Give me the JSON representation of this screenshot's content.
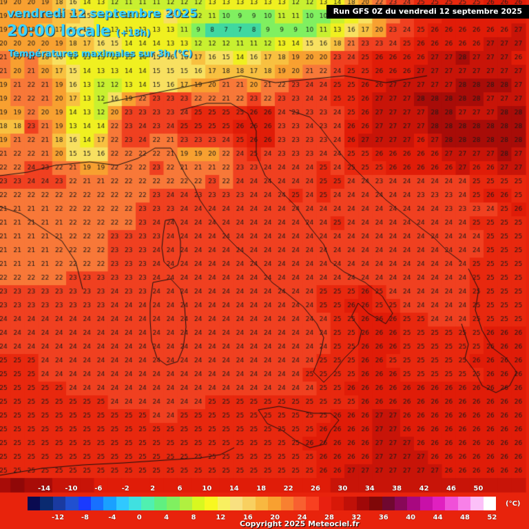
{
  "header": {
    "date": "vendredi 12 septembre 2025",
    "time": "20:00 locale",
    "lead": "(+18h)",
    "parameter": "Températures maximales sur 3h (°C)"
  },
  "run_info": "Run GFS 0Z du vendredi 12 septembre 2025",
  "copyright": "Copyright 2025 Meteociel.fr",
  "legend": {
    "unit": "(°C)",
    "top_labels": [
      "-14",
      "-10",
      "-6",
      "-2",
      "2",
      "6",
      "10",
      "14",
      "18",
      "22",
      "26",
      "30",
      "34",
      "38",
      "42",
      "46",
      "50"
    ],
    "bottom_labels": [
      "-12",
      "-8",
      "-4",
      "0",
      "4",
      "8",
      "12",
      "16",
      "20",
      "24",
      "28",
      "32",
      "36",
      "40",
      "44",
      "48",
      "52"
    ],
    "colors": [
      "#0a0a50",
      "#0a2a70",
      "#1a3aa0",
      "#2050d0",
      "#1a3aff",
      "#1870ff",
      "#1aa0ff",
      "#30c8ff",
      "#40e0e0",
      "#50f0b0",
      "#60f080",
      "#80f060",
      "#b0f040",
      "#d8f820",
      "#f8f820",
      "#f8f060",
      "#f8e080",
      "#f8d060",
      "#f8b840",
      "#f8a030",
      "#f88030",
      "#f86030",
      "#f84020",
      "#e82010",
      "#d81808",
      "#c01008",
      "#a00808",
      "#800808",
      "#700830",
      "#880858",
      "#a80880",
      "#c810a8",
      "#e020c0",
      "#f050d8",
      "#f880e8",
      "#fcc0f8",
      "#ffffff"
    ]
  },
  "grid": {
    "rows": [
      "19 20 20 19 18 16 14 13 12 11 11 11 12 12 12 13 13 13 13 13 13 12 12 13 14 18 20 22 23 24 25 25 25 25 25 26 26 26",
      "19 20 20 19 18 17 15 14 13 13 13 14 15 13 12 11 10 9 9 10 11 11 10 10 11 14 15 20 21 24 25 25 26 26 26 26 26 26",
      "19 19 19 18 17 16 15 14 13 13 13 13 13 11 9 8 7 7 8 9 9 9 10 11 13 16 17 20 23 24 25 26 26 26 26 26 26 27",
      "20 20 20 20 19 18 17 16 15 14 14 14 13 13 12 12 12 11 11 12 13 14 15 16 18 21 23 23 24 25 26 26 26 26 26 27 27 27",
      "21 20 21 18 16 14 13 13 13 13 14 15 16 16 17 16 15 14 16 17 18 19 20 20 23 24 25 26 26 26 26 27 27 28 27 27 27 26",
      "21 20 21 20 17 15 14 13 13 14 14 15 15 15 16 17 18 18 17 18 19 20 21 22 24 25 25 26 26 26 27 27 27 27 27 27 27 27",
      "19 21 22 21 19 16 13 12 12 13 14 15 16 17 19 20 21 21 20 21 22 23 24 24 25 25 26 26 27 27 27 27 27 28 28 28 28 27",
      "19 22 22 21 20 17 13 12 16 19 22 23 23 23 22 22 21 22 23 22 23 23 24 24 25 25 26 27 27 27 28 28 28 28 28 27 27 27",
      "19 19 22 20 19 14 13 12 20 23 23 23 23 24 25 25 25 25 26 26 24 23 23 23 24 25 26 27 27 27 27 28 28 27 27 27 28 28",
      "18 18 23 21 19 13 14 14 22 23 24 23 24 25 25 25 25 26 26 26 23 23 24 23 24 26 26 27 27 27 27 28 28 28 28 28 28 28",
      "19 21 22 21 18 16 14 17 22 23 24 22 21 23 23 23 24 25 26 26 23 23 23 23 24 26 27 27 27 27 26 27 28 28 28 28 28 28",
      "21 22 22 21 20 15 15 16 22 22 22 22 21 19 19 20 22 24 25 24 23 23 23 24 24 25 25 26 26 26 26 26 27 27 27 27 28 27",
      "22 22 24 23 22 21 19 19 22 22 22 23 22 21 21 21 22 23 23 24 24 24 24 25 24 25 25 25 26 26 26 26 26 27 26 26 27 27",
      "23 23 24 24 23 22 21 21 22 22 22 22 22 22 22 23 22 24 24 24 24 24 24 25 25 24 24 23 24 24 24 24 24 24 25 25 25 25",
      "22 22 22 22 22 22 22 22 22 22 22 23 24 24 23 23 23 23 24 24 24 25 24 25 24 24 24 24 24 24 23 23 23 24 25 26 26 25",
      "21 21 21 21 22 22 22 22 22 22 23 23 23 24 24 24 24 24 24 24 24 24 24 24 24 24 24 24 24 24 24 24 23 23 23 24 25 26",
      "21 21 21 21 21 22 22 22 22 22 23 24 24 24 24 24 24 24 24 24 24 24 24 24 25 24 24 24 24 24 24 24 24 24 25 25 25 25",
      "21 21 21 21 21 22 22 22 23 23 23 23 24 24 24 24 24 24 24 24 24 24 24 24 24 24 24 24 24 24 24 24 24 24 24 25 25 25",
      "21 21 21 21 22 22 22 22 23 23 23 24 24 24 24 24 24 24 24 24 24 24 24 24 24 24 24 24 24 24 24 24 24 24 24 25 25 25",
      "21 21 21 21 22 22 22 22 23 23 23 24 24 24 24 24 24 24 24 24 24 24 24 24 24 24 24 24 24 24 24 24 24 24 25 25 25 25",
      "22 22 22 22 22 23 23 23 23 23 23 24 24 24 24 24 24 24 24 24 24 24 24 24 24 24 24 24 24 24 24 24 24 24 25 25 25 25",
      "23 23 23 23 23 23 23 23 24 23 23 24 24 24 24 24 24 24 24 24 24 24 24 25 25 25 26 25 24 24 24 24 24 24 25 25 25 25",
      "23 23 23 23 23 23 23 23 24 24 24 24 24 24 24 24 24 24 24 24 24 24 24 25 25 26 26 25 25 24 24 24 24 24 25 25 25 25",
      "24 24 24 24 24 24 24 24 24 24 24 24 24 24 24 24 24 24 24 24 24 24 24 24 25 25 26 26 26 25 25 24 24 24 25 25 25 25",
      "24 24 24 24 24 24 24 24 24 24 24 24 24 24 24 24 24 24 24 24 24 24 24 24 25 25 26 26 26 25 25 25 25 25 25 26 26 26",
      "24 24 24 24 24 24 24 24 24 24 24 24 24 24 24 24 24 24 24 24 24 24 24 24 25 25 26 26 26 25 25 25 25 25 25 26 26 26",
      "25 25 25 24 24 24 24 24 24 24 24 24 24 24 24 24 24 24 24 24 24 24 24 25 25 25 26 26 25 25 25 25 25 25 26 26 26 26",
      "25 25 25 24 24 24 24 24 24 24 24 24 24 24 24 24 24 24 24 24 24 24 25 25 25 25 26 26 26 25 25 25 25 25 25 26 26 26",
      "25 25 25 25 25 24 24 24 24 24 24 24 24 24 24 24 24 24 24 24 24 24 24 25 25 26 26 26 26 26 26 26 26 26 26 26 26 26",
      "25 25 25 25 25 25 25 25 24 24 24 24 24 24 24 25 25 25 25 25 25 25 25 25 25 25 26 26 26 26 26 26 26 26 26 26 26 26",
      "25 25 25 25 25 25 25 25 25 25 25 24 24 25 25 25 25 25 25 25 25 25 25 25 26 26 26 27 27 26 26 26 26 26 26 26 26 26",
      "25 25 25 25 25 25 25 25 25 25 25 25 25 25 25 25 25 25 25 25 25 25 25 26 26 26 26 27 27 26 26 26 26 26 26 26 26 26",
      "25 25 25 25 25 25 25 25 25 25 25 25 25 25 25 25 25 25 25 25 25 25 26 26 26 26 26 27 27 27 26 26 26 26 26 26 26 26",
      "25 25 25 25 25 25 25 25 25 25 25 25 25 25 25 25 25 25 25 25 25 25 25 26 26 26 26 27 27 27 27 26 26 26 26 26 26 26",
      "25 25 25 25 25 25 25 25 25 25 25 25 25 25 25 25 25 25 25 25 25 25 25 26 26 27 27 27 27 27 27 27 26 26 26 26 26 26",
      "28 29 28 28 27 27 27 26 26 26 26 26 26 26 26 26 26 26 26 26 26 26 26 26 27 27 27 27 27 27 27 27 27 27 27 27 27 27"
    ]
  }
}
